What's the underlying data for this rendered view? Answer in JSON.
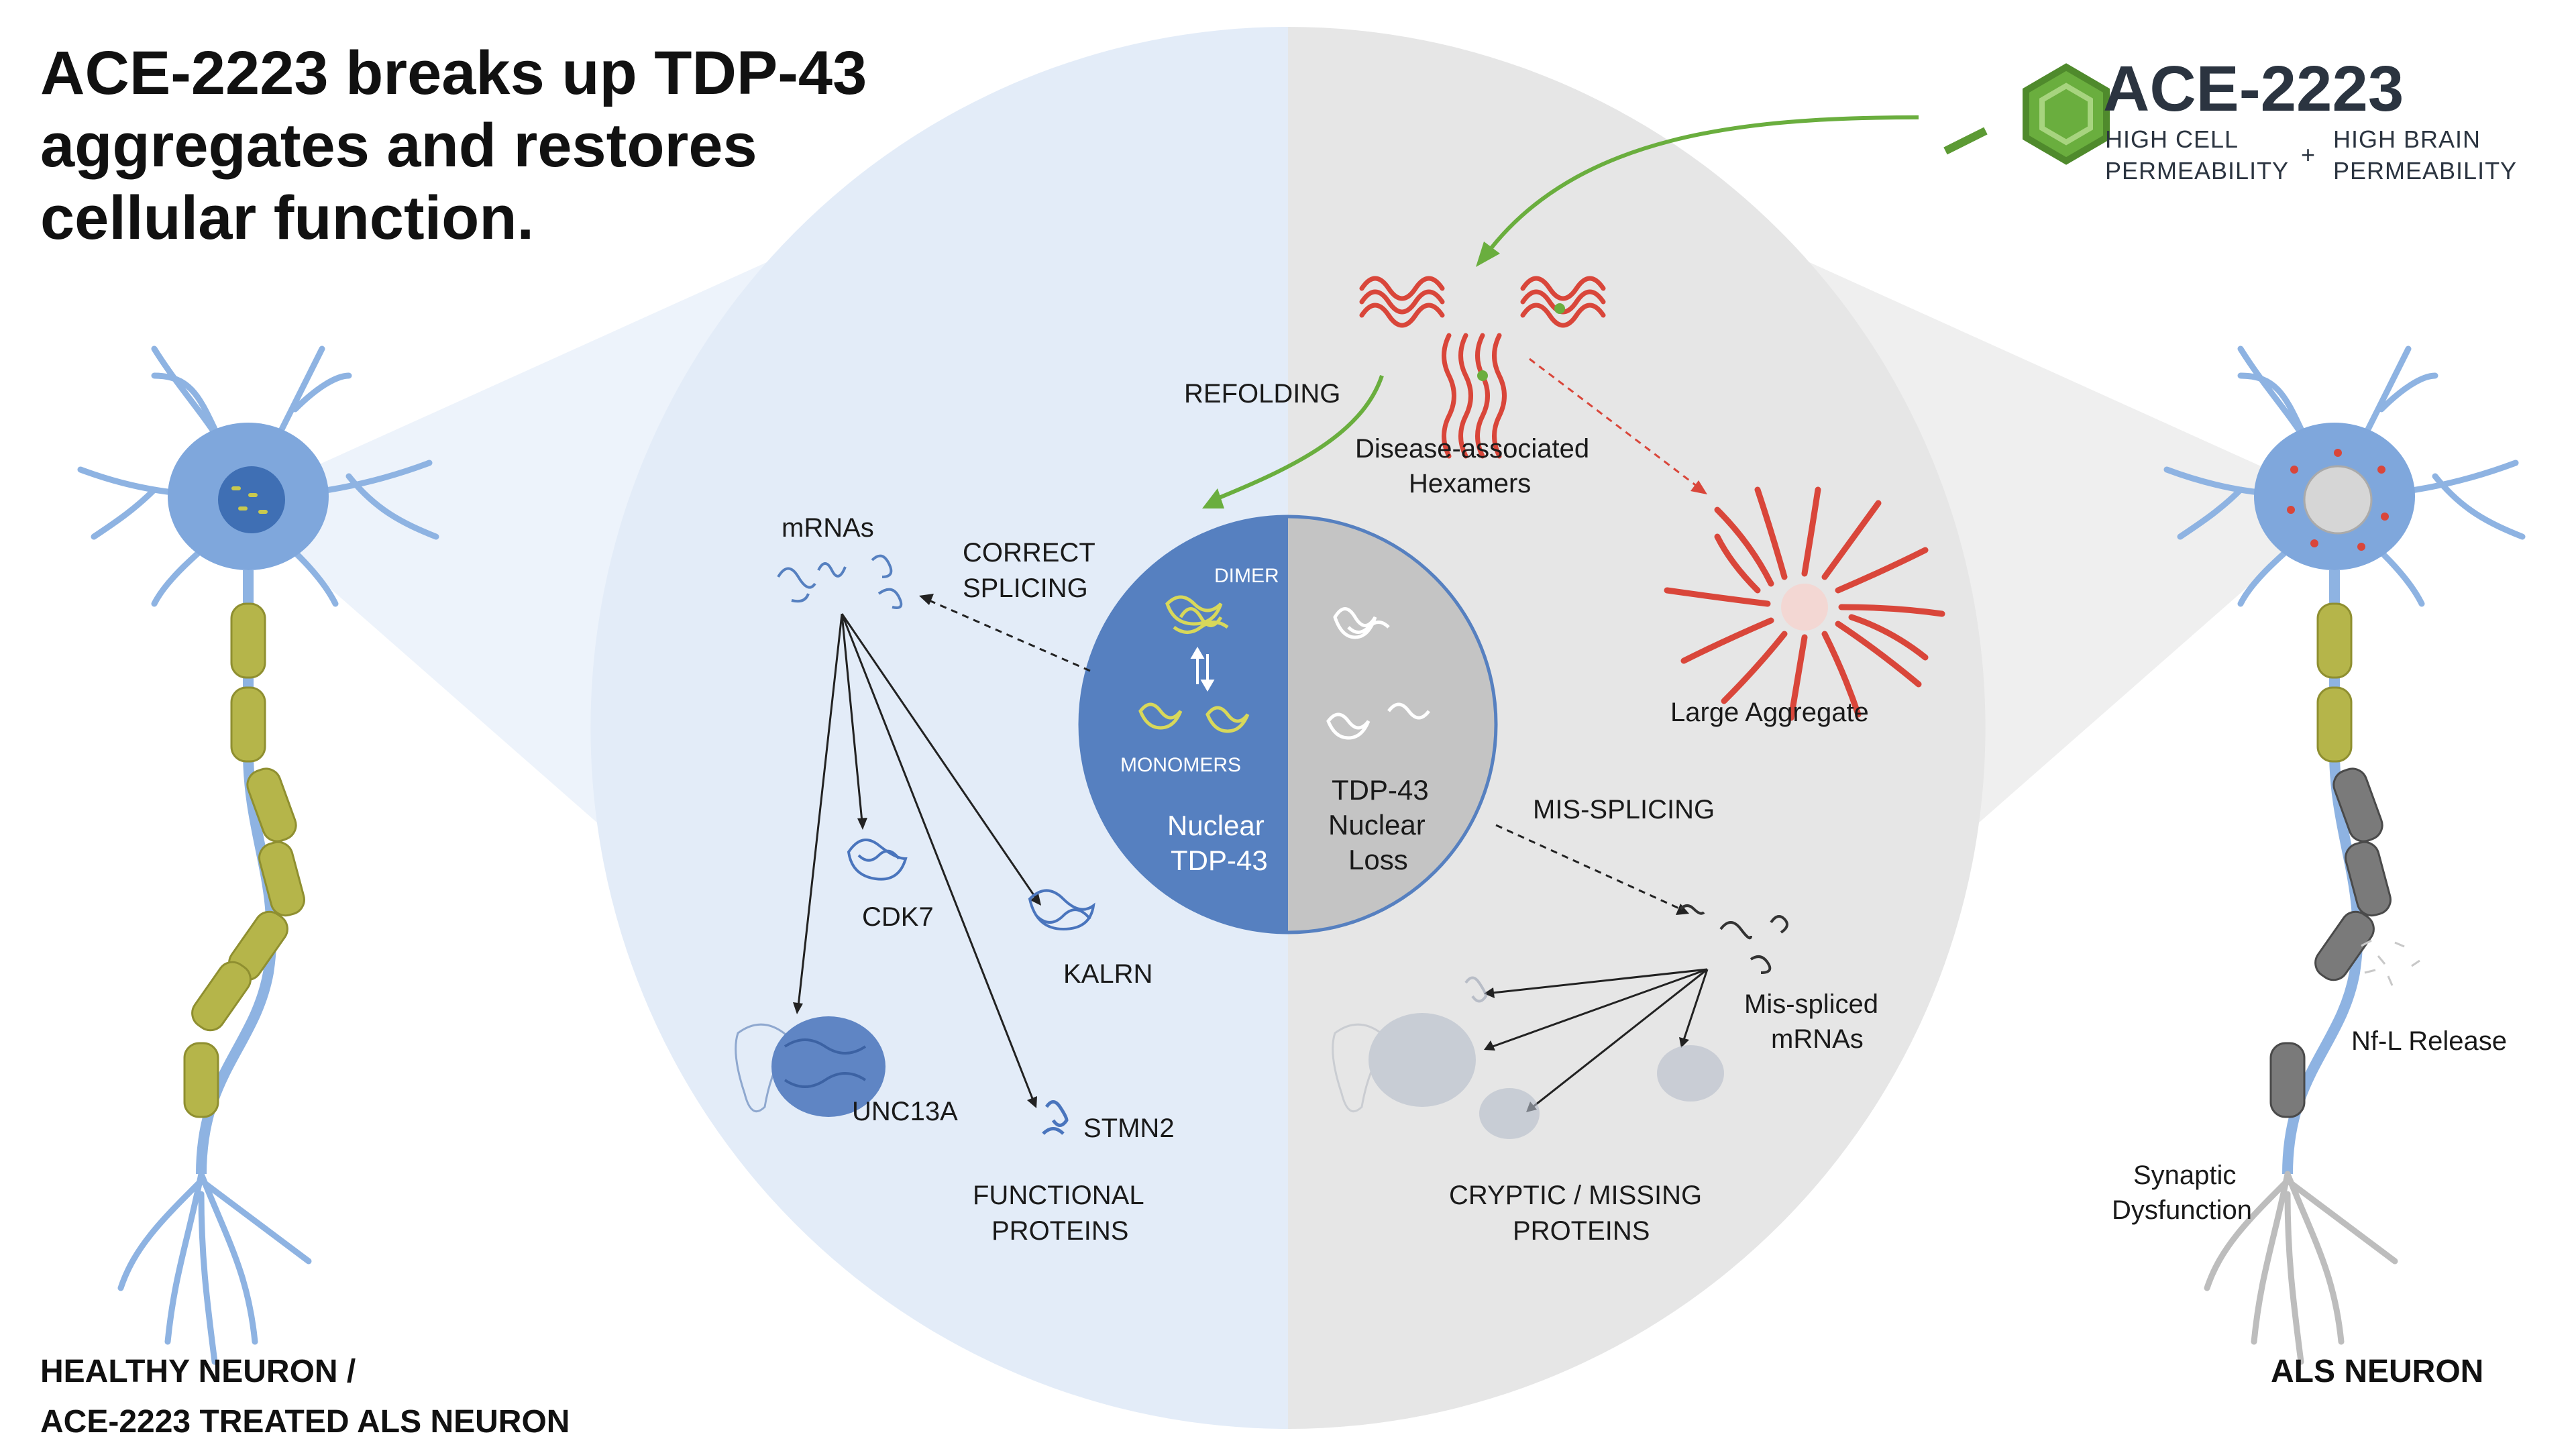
{
  "title_lines": [
    "ACE-2223 breaks up TDP-43",
    "aggregates and restores",
    "cellular function."
  ],
  "drug": {
    "name": "ACE-2223",
    "feature_1_line1": "HIGH CELL",
    "feature_1_line2": "PERMEABILITY",
    "plus": "+",
    "feature_2_line1": "HIGH BRAIN",
    "feature_2_line2": "PERMEABILITY"
  },
  "labels": {
    "refolding": "REFOLDING",
    "hexamers_line1": "Disease-associated",
    "hexamers_line2": "Hexamers",
    "large_aggregate": "Large Aggregate",
    "mrnas": "mRNAs",
    "correct_splicing_line1": "CORRECT",
    "correct_splicing_line2": "SPLICING",
    "dimer": "DIMER",
    "monomers": "MONOMERS",
    "nuclear_line1": "Nuclear",
    "nuclear_line2": "TDP-43",
    "loss_line1": "TDP-43",
    "loss_line2": "Nuclear",
    "loss_line3": "Loss",
    "mis_splicing": "MIS-SPLICING",
    "mis_spliced_line1": "Mis-spliced",
    "mis_spliced_line2": "mRNAs",
    "cdk7": "CDK7",
    "kalrn": "KALRN",
    "unc13a": "UNC13A",
    "stmn2": "STMN2",
    "functional_line1": "FUNCTIONAL",
    "functional_line2": "PROTEINS",
    "cryptic_line1": "CRYPTIC / MISSING",
    "cryptic_line2": "PROTEINS",
    "nfl_release": "Nf-L Release",
    "synaptic_line1": "Synaptic",
    "synaptic_line2": "Dysfunction"
  },
  "captions": {
    "healthy_line1": "HEALTHY NEURON /",
    "healthy_line2": "ACE-2223 TREATED ALS NEURON",
    "als": "ALS NEURON"
  },
  "colors": {
    "healthy_bg": "#e3ecf8",
    "disease_bg": "#e6e6e6",
    "nucleus_healthy": "#5680c0",
    "nucleus_disease": "#c4c4c4",
    "aggregate_red": "#d9463a",
    "drug_green": "#6aae3e",
    "neuron_blue": "#7fa7dc",
    "myelin_olive": "#b5b54a",
    "protein_blue": "#4a75bd"
  }
}
